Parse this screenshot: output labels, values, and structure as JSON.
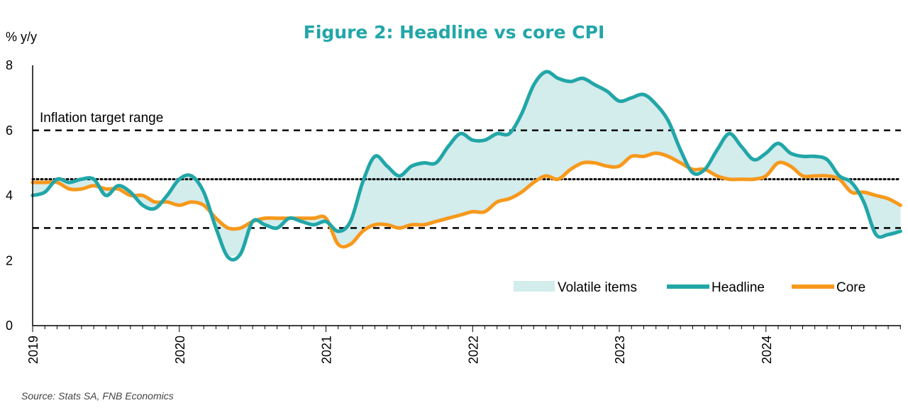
{
  "colors": {
    "headline": "#22A6A8",
    "core": "#F7991C",
    "fill": "#D3ECEC",
    "title": "#22A6A8",
    "axis": "#000000"
  },
  "chart_data": {
    "type": "line",
    "title": "Figure 2: Headline vs core CPI",
    "ylabel": "% y/y",
    "ylim": [
      0,
      8
    ],
    "yticks": [
      "0",
      "2",
      "4",
      "6",
      "8"
    ],
    "xlim": [
      2019.0,
      2024.92
    ],
    "xticks": [
      "2019",
      "2020",
      "2021",
      "2022",
      "2023",
      "2024"
    ],
    "legend_position": "bottom-right",
    "legend": {
      "fill_label": "Volatile items",
      "headline_label": "Headline",
      "core_label": "Core"
    },
    "annotation": "Inflation target range",
    "reference_lines": [
      {
        "y": 6,
        "style": "dashed"
      },
      {
        "y": 4.5,
        "style": "dotted"
      },
      {
        "y": 3,
        "style": "dashed"
      }
    ],
    "source": "Source: Stats SA, FNB Economics",
    "series": [
      {
        "name": "Headline",
        "x": [
          2019.0,
          2019.083,
          2019.167,
          2019.25,
          2019.333,
          2019.417,
          2019.5,
          2019.583,
          2019.667,
          2019.75,
          2019.833,
          2019.917,
          2020.0,
          2020.083,
          2020.167,
          2020.25,
          2020.333,
          2020.417,
          2020.5,
          2020.583,
          2020.667,
          2020.75,
          2020.833,
          2020.917,
          2021.0,
          2021.083,
          2021.167,
          2021.25,
          2021.333,
          2021.417,
          2021.5,
          2021.583,
          2021.667,
          2021.75,
          2021.833,
          2021.917,
          2022.0,
          2022.083,
          2022.167,
          2022.25,
          2022.333,
          2022.417,
          2022.5,
          2022.583,
          2022.667,
          2022.75,
          2022.833,
          2022.917,
          2023.0,
          2023.083,
          2023.167,
          2023.25,
          2023.333,
          2023.417,
          2023.5,
          2023.583,
          2023.667,
          2023.75,
          2023.833,
          2023.917,
          2024.0,
          2024.083,
          2024.167,
          2024.25,
          2024.333,
          2024.417,
          2024.5,
          2024.583,
          2024.667,
          2024.75,
          2024.833,
          2024.917
        ],
        "values": [
          4.0,
          4.1,
          4.5,
          4.4,
          4.5,
          4.5,
          4.0,
          4.3,
          4.1,
          3.7,
          3.6,
          4.0,
          4.5,
          4.6,
          4.1,
          3.0,
          2.1,
          2.2,
          3.2,
          3.1,
          3.0,
          3.3,
          3.2,
          3.1,
          3.2,
          2.9,
          3.2,
          4.4,
          5.2,
          4.9,
          4.6,
          4.9,
          5.0,
          5.0,
          5.5,
          5.9,
          5.7,
          5.7,
          5.9,
          5.9,
          6.5,
          7.4,
          7.8,
          7.6,
          7.5,
          7.6,
          7.4,
          7.2,
          6.9,
          7.0,
          7.1,
          6.8,
          6.3,
          5.4,
          4.7,
          4.8,
          5.4,
          5.9,
          5.5,
          5.1,
          5.3,
          5.6,
          5.3,
          5.2,
          5.2,
          5.1,
          4.6,
          4.4,
          3.8,
          2.8,
          2.8,
          2.9
        ]
      },
      {
        "name": "Core",
        "x": [
          2019.0,
          2019.083,
          2019.167,
          2019.25,
          2019.333,
          2019.417,
          2019.5,
          2019.583,
          2019.667,
          2019.75,
          2019.833,
          2019.917,
          2020.0,
          2020.083,
          2020.167,
          2020.25,
          2020.333,
          2020.417,
          2020.5,
          2020.583,
          2020.667,
          2020.75,
          2020.833,
          2020.917,
          2021.0,
          2021.083,
          2021.167,
          2021.25,
          2021.333,
          2021.417,
          2021.5,
          2021.583,
          2021.667,
          2021.75,
          2021.833,
          2021.917,
          2022.0,
          2022.083,
          2022.167,
          2022.25,
          2022.333,
          2022.417,
          2022.5,
          2022.583,
          2022.667,
          2022.75,
          2022.833,
          2022.917,
          2023.0,
          2023.083,
          2023.167,
          2023.25,
          2023.333,
          2023.417,
          2023.5,
          2023.583,
          2023.667,
          2023.75,
          2023.833,
          2023.917,
          2024.0,
          2024.083,
          2024.167,
          2024.25,
          2024.333,
          2024.417,
          2024.5,
          2024.583,
          2024.667,
          2024.75,
          2024.833,
          2024.917
        ],
        "values": [
          4.4,
          4.4,
          4.4,
          4.2,
          4.2,
          4.3,
          4.2,
          4.2,
          4.0,
          4.0,
          3.8,
          3.8,
          3.7,
          3.8,
          3.7,
          3.3,
          3.0,
          3.0,
          3.2,
          3.3,
          3.3,
          3.3,
          3.3,
          3.3,
          3.3,
          2.5,
          2.5,
          2.9,
          3.1,
          3.1,
          3.0,
          3.1,
          3.1,
          3.2,
          3.3,
          3.4,
          3.5,
          3.5,
          3.8,
          3.9,
          4.1,
          4.4,
          4.6,
          4.5,
          4.8,
          5.0,
          5.0,
          4.9,
          4.9,
          5.2,
          5.2,
          5.3,
          5.2,
          5.0,
          4.8,
          4.8,
          4.6,
          4.5,
          4.5,
          4.5,
          4.6,
          5.0,
          4.9,
          4.6,
          4.6,
          4.6,
          4.5,
          4.1,
          4.1,
          4.0,
          3.9,
          3.7
        ]
      }
    ]
  }
}
